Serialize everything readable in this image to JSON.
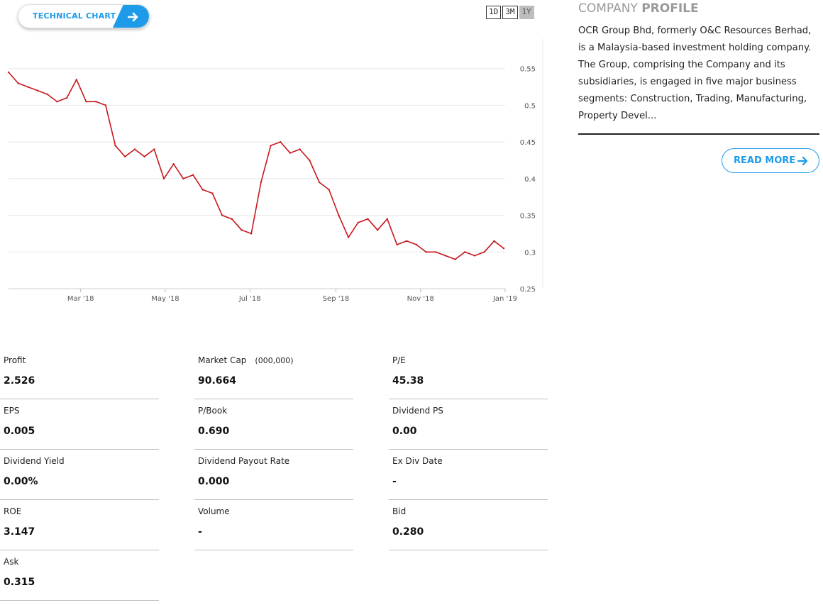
{
  "technical_chart_button": {
    "label": "TECHNICAL CHART",
    "icon": "arrow-right-icon",
    "color": "#1e9be8"
  },
  "range_toggle": {
    "options": [
      "1D",
      "3M",
      "1Y"
    ],
    "selected": "1Y"
  },
  "chart_data": {
    "type": "line",
    "series_color": "#c8161d",
    "y_ticks": [
      "0.25",
      "0.3",
      "0.35",
      "0.4",
      "0.45",
      "0.5",
      "0.55"
    ],
    "ylim": [
      0.25,
      0.6
    ],
    "x_ticks": [
      "Mar '18",
      "May '18",
      "Jul '18",
      "Sep '18",
      "Nov '18",
      "Jan '19"
    ],
    "x": [
      "2018-01-08",
      "2018-01-15",
      "2018-01-22",
      "2018-01-29",
      "2018-02-05",
      "2018-02-12",
      "2018-02-19",
      "2018-02-26",
      "2018-03-05",
      "2018-03-12",
      "2018-03-19",
      "2018-03-26",
      "2018-04-02",
      "2018-04-09",
      "2018-04-16",
      "2018-04-23",
      "2018-04-30",
      "2018-05-07",
      "2018-05-14",
      "2018-05-21",
      "2018-05-28",
      "2018-06-04",
      "2018-06-11",
      "2018-06-18",
      "2018-06-25",
      "2018-07-02",
      "2018-07-09",
      "2018-07-16",
      "2018-07-23",
      "2018-07-30",
      "2018-08-06",
      "2018-08-13",
      "2018-08-20",
      "2018-08-27",
      "2018-09-03",
      "2018-09-10",
      "2018-09-17",
      "2018-09-24",
      "2018-10-01",
      "2018-10-08",
      "2018-10-15",
      "2018-10-22",
      "2018-10-29",
      "2018-11-05",
      "2018-11-12",
      "2018-11-19",
      "2018-11-26",
      "2018-12-03",
      "2018-12-10",
      "2018-12-17",
      "2018-12-24",
      "2018-12-31"
    ],
    "values": [
      0.545,
      0.53,
      0.525,
      0.52,
      0.515,
      0.505,
      0.51,
      0.535,
      0.505,
      0.505,
      0.5,
      0.445,
      0.43,
      0.44,
      0.43,
      0.44,
      0.4,
      0.42,
      0.4,
      0.405,
      0.385,
      0.38,
      0.35,
      0.345,
      0.33,
      0.325,
      0.395,
      0.445,
      0.45,
      0.435,
      0.44,
      0.425,
      0.395,
      0.385,
      0.35,
      0.32,
      0.34,
      0.345,
      0.33,
      0.345,
      0.31,
      0.315,
      0.31,
      0.3,
      0.3,
      0.295,
      0.29,
      0.3,
      0.295,
      0.3,
      0.315,
      0.305
    ]
  },
  "profile": {
    "heading_light": "COMPANY ",
    "heading_bold": "PROFILE",
    "description": "OCR Group Bhd, formerly O&C Resources Berhad, is a Malaysia-based investment holding company. The Group, comprising the Company and its subsidiaries, is engaged in five major business segments: Construction, Trading, Manufacturing, Property Devel...",
    "read_more": "READ MORE",
    "read_more_icon": "arrow-right-icon"
  },
  "stats": [
    {
      "label": "Profit",
      "value": "2.526"
    },
    {
      "label": "Market Cap",
      "unit": "(000,000)",
      "value": "90.664"
    },
    {
      "label": "P/E",
      "value": "45.38"
    },
    {
      "label": "EPS",
      "value": "0.005"
    },
    {
      "label": "P/Book",
      "value": "0.690"
    },
    {
      "label": "Dividend PS",
      "value": "0.00"
    },
    {
      "label": "Dividend Yield",
      "value": "0.00%"
    },
    {
      "label": "Dividend Payout Rate",
      "value": "0.000"
    },
    {
      "label": "Ex Div Date",
      "value": "-"
    },
    {
      "label": "ROE",
      "value": "3.147"
    },
    {
      "label": "Volume",
      "value": "-"
    },
    {
      "label": "Bid",
      "value": "0.280"
    },
    {
      "label": "Ask",
      "value": "0.315"
    }
  ]
}
